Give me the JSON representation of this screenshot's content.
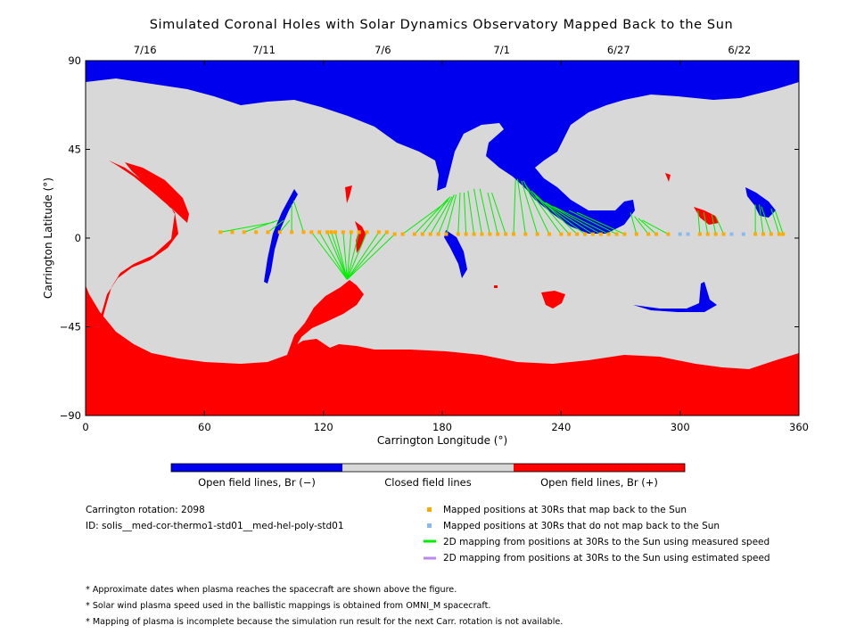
{
  "title": "Simulated Coronal Holes with Solar Dynamics Observatory Mapped Back to the Sun",
  "chart_data": {
    "type": "scatter",
    "title": "Simulated Coronal Holes with Solar Dynamics Observatory Mapped Back to the Sun",
    "xlabel": "Carrington Longitude (°)",
    "ylabel": "Carrington Latitude (°)",
    "xlim": [
      0,
      360
    ],
    "ylim": [
      -90,
      90
    ],
    "x_ticks": [
      0,
      60,
      120,
      180,
      240,
      300,
      360
    ],
    "y_ticks": [
      -90,
      -45,
      0,
      45,
      90
    ],
    "x_tick_labels": [
      "0",
      "60",
      "120",
      "180",
      "240",
      "300",
      "360"
    ],
    "y_tick_labels": [
      "−90",
      "−45",
      "0",
      "45",
      "90"
    ],
    "top_axis_dates": [
      {
        "label": "7/16",
        "lon": 30
      },
      {
        "label": "7/11",
        "lon": 90
      },
      {
        "label": "7/6",
        "lon": 150
      },
      {
        "label": "7/1",
        "lon": 210
      },
      {
        "label": "6/27",
        "lon": 269
      },
      {
        "label": "6/22",
        "lon": 330
      }
    ],
    "colors": {
      "open_negative": "#0000ee",
      "closed": "#d8d8d8",
      "open_positive": "#ff0000",
      "mapped_point": "#ffaa00",
      "unmapped_point": "#88bbee",
      "measured_line": "#00ee00",
      "estimated_line": "#bb88ee"
    },
    "series": [
      {
        "name": "Mapped positions at 30Rs that map back to the Sun",
        "lon": [
          68,
          74,
          80,
          86,
          92,
          98,
          104,
          110,
          114,
          118,
          122,
          124,
          126,
          130,
          134,
          138,
          142,
          148,
          152,
          156,
          160,
          166,
          170,
          174,
          178,
          182,
          188,
          192,
          196,
          200,
          204,
          208,
          212,
          216,
          222,
          228,
          234,
          240,
          244,
          248,
          252,
          256,
          260,
          264,
          268,
          272,
          278,
          284,
          288,
          294,
          310,
          314,
          318,
          322,
          338,
          342,
          346,
          350,
          352
        ],
        "lat": [
          3,
          3,
          3,
          3,
          3,
          3,
          3,
          3,
          3,
          3,
          3,
          3,
          3,
          3,
          3,
          3,
          3,
          3,
          3,
          2,
          2,
          2,
          2,
          2,
          2,
          2,
          2,
          2,
          2,
          2,
          2,
          2,
          2,
          2,
          2,
          2,
          2,
          2,
          2,
          2,
          2,
          2,
          2,
          2,
          2,
          2,
          2,
          2,
          2,
          2,
          2,
          2,
          2,
          2,
          2,
          2,
          2,
          2,
          2
        ]
      },
      {
        "name": "Mapped positions at 30Rs that do not map back to the Sun",
        "lon": [
          300,
          304,
          326,
          332
        ],
        "lat": [
          2,
          2,
          2,
          2
        ]
      },
      {
        "name": "2D mapping from positions at 30Rs to the Sun using measured speed",
        "lines": [
          [
            68,
            3,
            95,
            8
          ],
          [
            80,
            3,
            97,
            9
          ],
          [
            92,
            3,
            100,
            9
          ],
          [
            98,
            3,
            103,
            9
          ],
          [
            104,
            3,
            104,
            17
          ],
          [
            110,
            3,
            105,
            19
          ],
          [
            114,
            3,
            132,
            -21
          ],
          [
            118,
            3,
            132,
            -21
          ],
          [
            122,
            3,
            132,
            -21
          ],
          [
            124,
            3,
            132,
            -21
          ],
          [
            126,
            3,
            132,
            -21
          ],
          [
            130,
            3,
            132,
            -21
          ],
          [
            134,
            3,
            132,
            -21
          ],
          [
            138,
            3,
            132,
            -21
          ],
          [
            142,
            3,
            132,
            -21
          ],
          [
            148,
            3,
            132,
            -21
          ],
          [
            152,
            3,
            132,
            -21
          ],
          [
            156,
            2,
            132,
            -21
          ],
          [
            160,
            2,
            183,
            19
          ],
          [
            166,
            2,
            183,
            20
          ],
          [
            170,
            2,
            184,
            21
          ],
          [
            174,
            2,
            185,
            21
          ],
          [
            178,
            2,
            186,
            22
          ],
          [
            182,
            2,
            187,
            22
          ],
          [
            188,
            2,
            189,
            23
          ],
          [
            192,
            2,
            191,
            23
          ],
          [
            196,
            2,
            193,
            24
          ],
          [
            200,
            2,
            196,
            25
          ],
          [
            204,
            2,
            199,
            25
          ],
          [
            208,
            2,
            203,
            23
          ],
          [
            212,
            2,
            205,
            23
          ],
          [
            216,
            2,
            217,
            30
          ],
          [
            222,
            2,
            218,
            30
          ],
          [
            228,
            2,
            220,
            29
          ],
          [
            234,
            2,
            221,
            29
          ],
          [
            240,
            2,
            222,
            27
          ],
          [
            244,
            2,
            225,
            24
          ],
          [
            248,
            2,
            226,
            23
          ],
          [
            252,
            2,
            227,
            21
          ],
          [
            256,
            2,
            230,
            19
          ],
          [
            260,
            2,
            232,
            18
          ],
          [
            264,
            2,
            236,
            16
          ],
          [
            268,
            2,
            244,
            14
          ],
          [
            272,
            2,
            248,
            13
          ],
          [
            278,
            2,
            275,
            13
          ],
          [
            284,
            2,
            277,
            11
          ],
          [
            288,
            2,
            279,
            10
          ],
          [
            294,
            2,
            281,
            9
          ],
          [
            310,
            2,
            309,
            14
          ],
          [
            314,
            2,
            312,
            13
          ],
          [
            318,
            2,
            316,
            12
          ],
          [
            322,
            2,
            318,
            11
          ],
          [
            338,
            2,
            338,
            17
          ],
          [
            342,
            2,
            340,
            17
          ],
          [
            346,
            2,
            341,
            16
          ],
          [
            350,
            2,
            346,
            15
          ],
          [
            352,
            2,
            348,
            14
          ]
        ]
      },
      {
        "name": "2D mapping from positions at 30Rs to the Sun using estimated speed",
        "lines": []
      }
    ]
  },
  "colorbar": {
    "labels": [
      "Open field lines, Br (−)",
      "Closed field lines",
      "Open field lines, Br (+)"
    ],
    "colors": [
      "#0000ee",
      "#d8d8d8",
      "#ff0000"
    ]
  },
  "info": {
    "rotation": "Carrington rotation: 2098",
    "id": "ID: solis__med-cor-thermo1-std01__med-hel-poly-std01"
  },
  "legend": [
    {
      "label": "Mapped positions at 30Rs that map back to the Sun",
      "kind": "square",
      "color": "#ffaa00"
    },
    {
      "label": "Mapped positions at 30Rs that do not map back to the Sun",
      "kind": "square",
      "color": "#88bbee"
    },
    {
      "label": "2D mapping from positions at 30Rs to the Sun using measured speed",
      "kind": "line",
      "color": "#00ee00"
    },
    {
      "label": "2D mapping from positions at 30Rs to the Sun using estimated speed",
      "kind": "line",
      "color": "#bb88ee"
    }
  ],
  "notes": [
    "* Approximate dates when plasma reaches the spacecraft are shown above the figure.",
    "* Solar wind plasma speed used in the ballistic mappings is obtained from OMNI_M spacecraft.",
    "* Mapping of plasma is incomplete because the simulation run result for the next Carr. rotation is not available."
  ]
}
